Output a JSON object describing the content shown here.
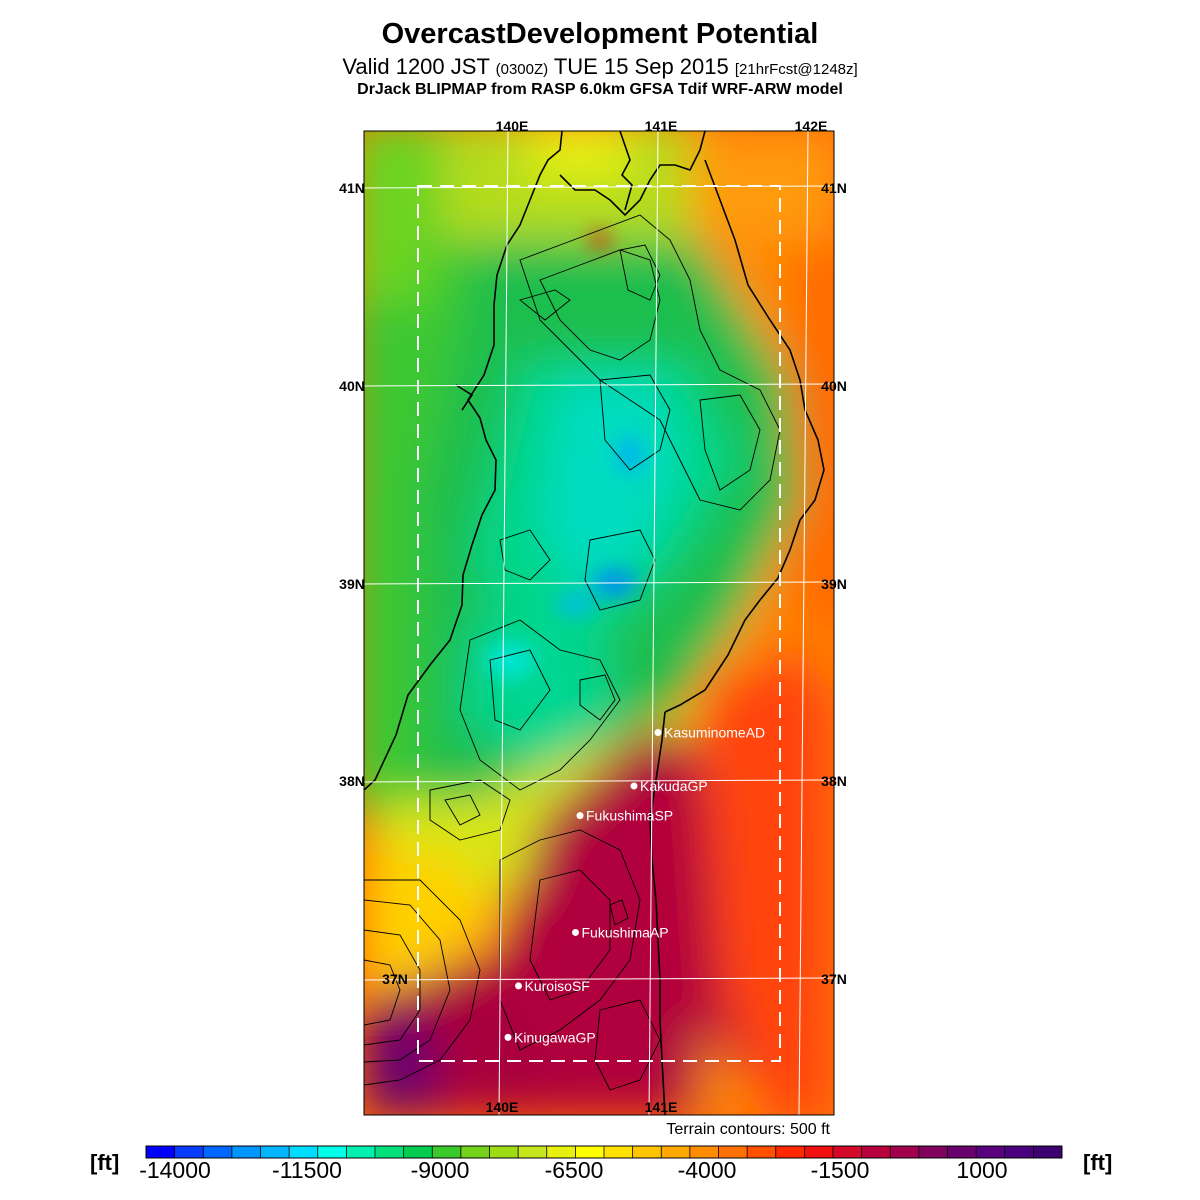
{
  "title": "OvercastDevelopment Potential",
  "subtitle": {
    "valid": "Valid 1200 JST",
    "utc": "(0300Z)",
    "date": "TUE 15 Sep 2015",
    "forecast": "[21hrFcst@1248z]"
  },
  "credit": "DrJack BLIPMAP from RASP 6.0km GFSA Tdif WRF-ARW model",
  "map": {
    "lon_labels": [
      "140E",
      "141E",
      "142E"
    ],
    "lat_labels": [
      "41N",
      "40N",
      "39N",
      "38N",
      "37N"
    ],
    "terrain_note": "Terrain contours: 500 ft",
    "sites": [
      {
        "name": "KasuminomeAD",
        "lon": 140.98,
        "lat": 38.24
      },
      {
        "name": "KakudaGP",
        "lon": 140.82,
        "lat": 37.97
      },
      {
        "name": "FukushimaSP",
        "lon": 140.46,
        "lat": 37.82
      },
      {
        "name": "FukushimaAP",
        "lon": 140.43,
        "lat": 37.23
      },
      {
        "name": "KuroisoSF",
        "lon": 140.05,
        "lat": 36.96
      },
      {
        "name": "KinugawaGP",
        "lon": 139.98,
        "lat": 36.7
      }
    ]
  },
  "colorbar": {
    "unit_left": "[ft]",
    "unit_right": "[ft]",
    "tick_labels": [
      "-14000",
      "-11500",
      "-9000",
      "-6500",
      "-4000",
      "-1500",
      "1000"
    ],
    "colors": [
      "#0000ff",
      "#0a3cff",
      "#0068ff",
      "#0094ff",
      "#00b4ff",
      "#00dcff",
      "#00ffe6",
      "#00f0b0",
      "#00e07c",
      "#00cc50",
      "#3cc828",
      "#74d21a",
      "#a0dc14",
      "#c8e61e",
      "#e8f010",
      "#ffff00",
      "#ffe200",
      "#ffc400",
      "#ffa800",
      "#ff8c00",
      "#ff7000",
      "#ff5000",
      "#ff2800",
      "#f01010",
      "#d40a28",
      "#b8003c",
      "#a0004c",
      "#82005e",
      "#6a006e",
      "#5a007c",
      "#4b0082",
      "#3c0070"
    ]
  }
}
